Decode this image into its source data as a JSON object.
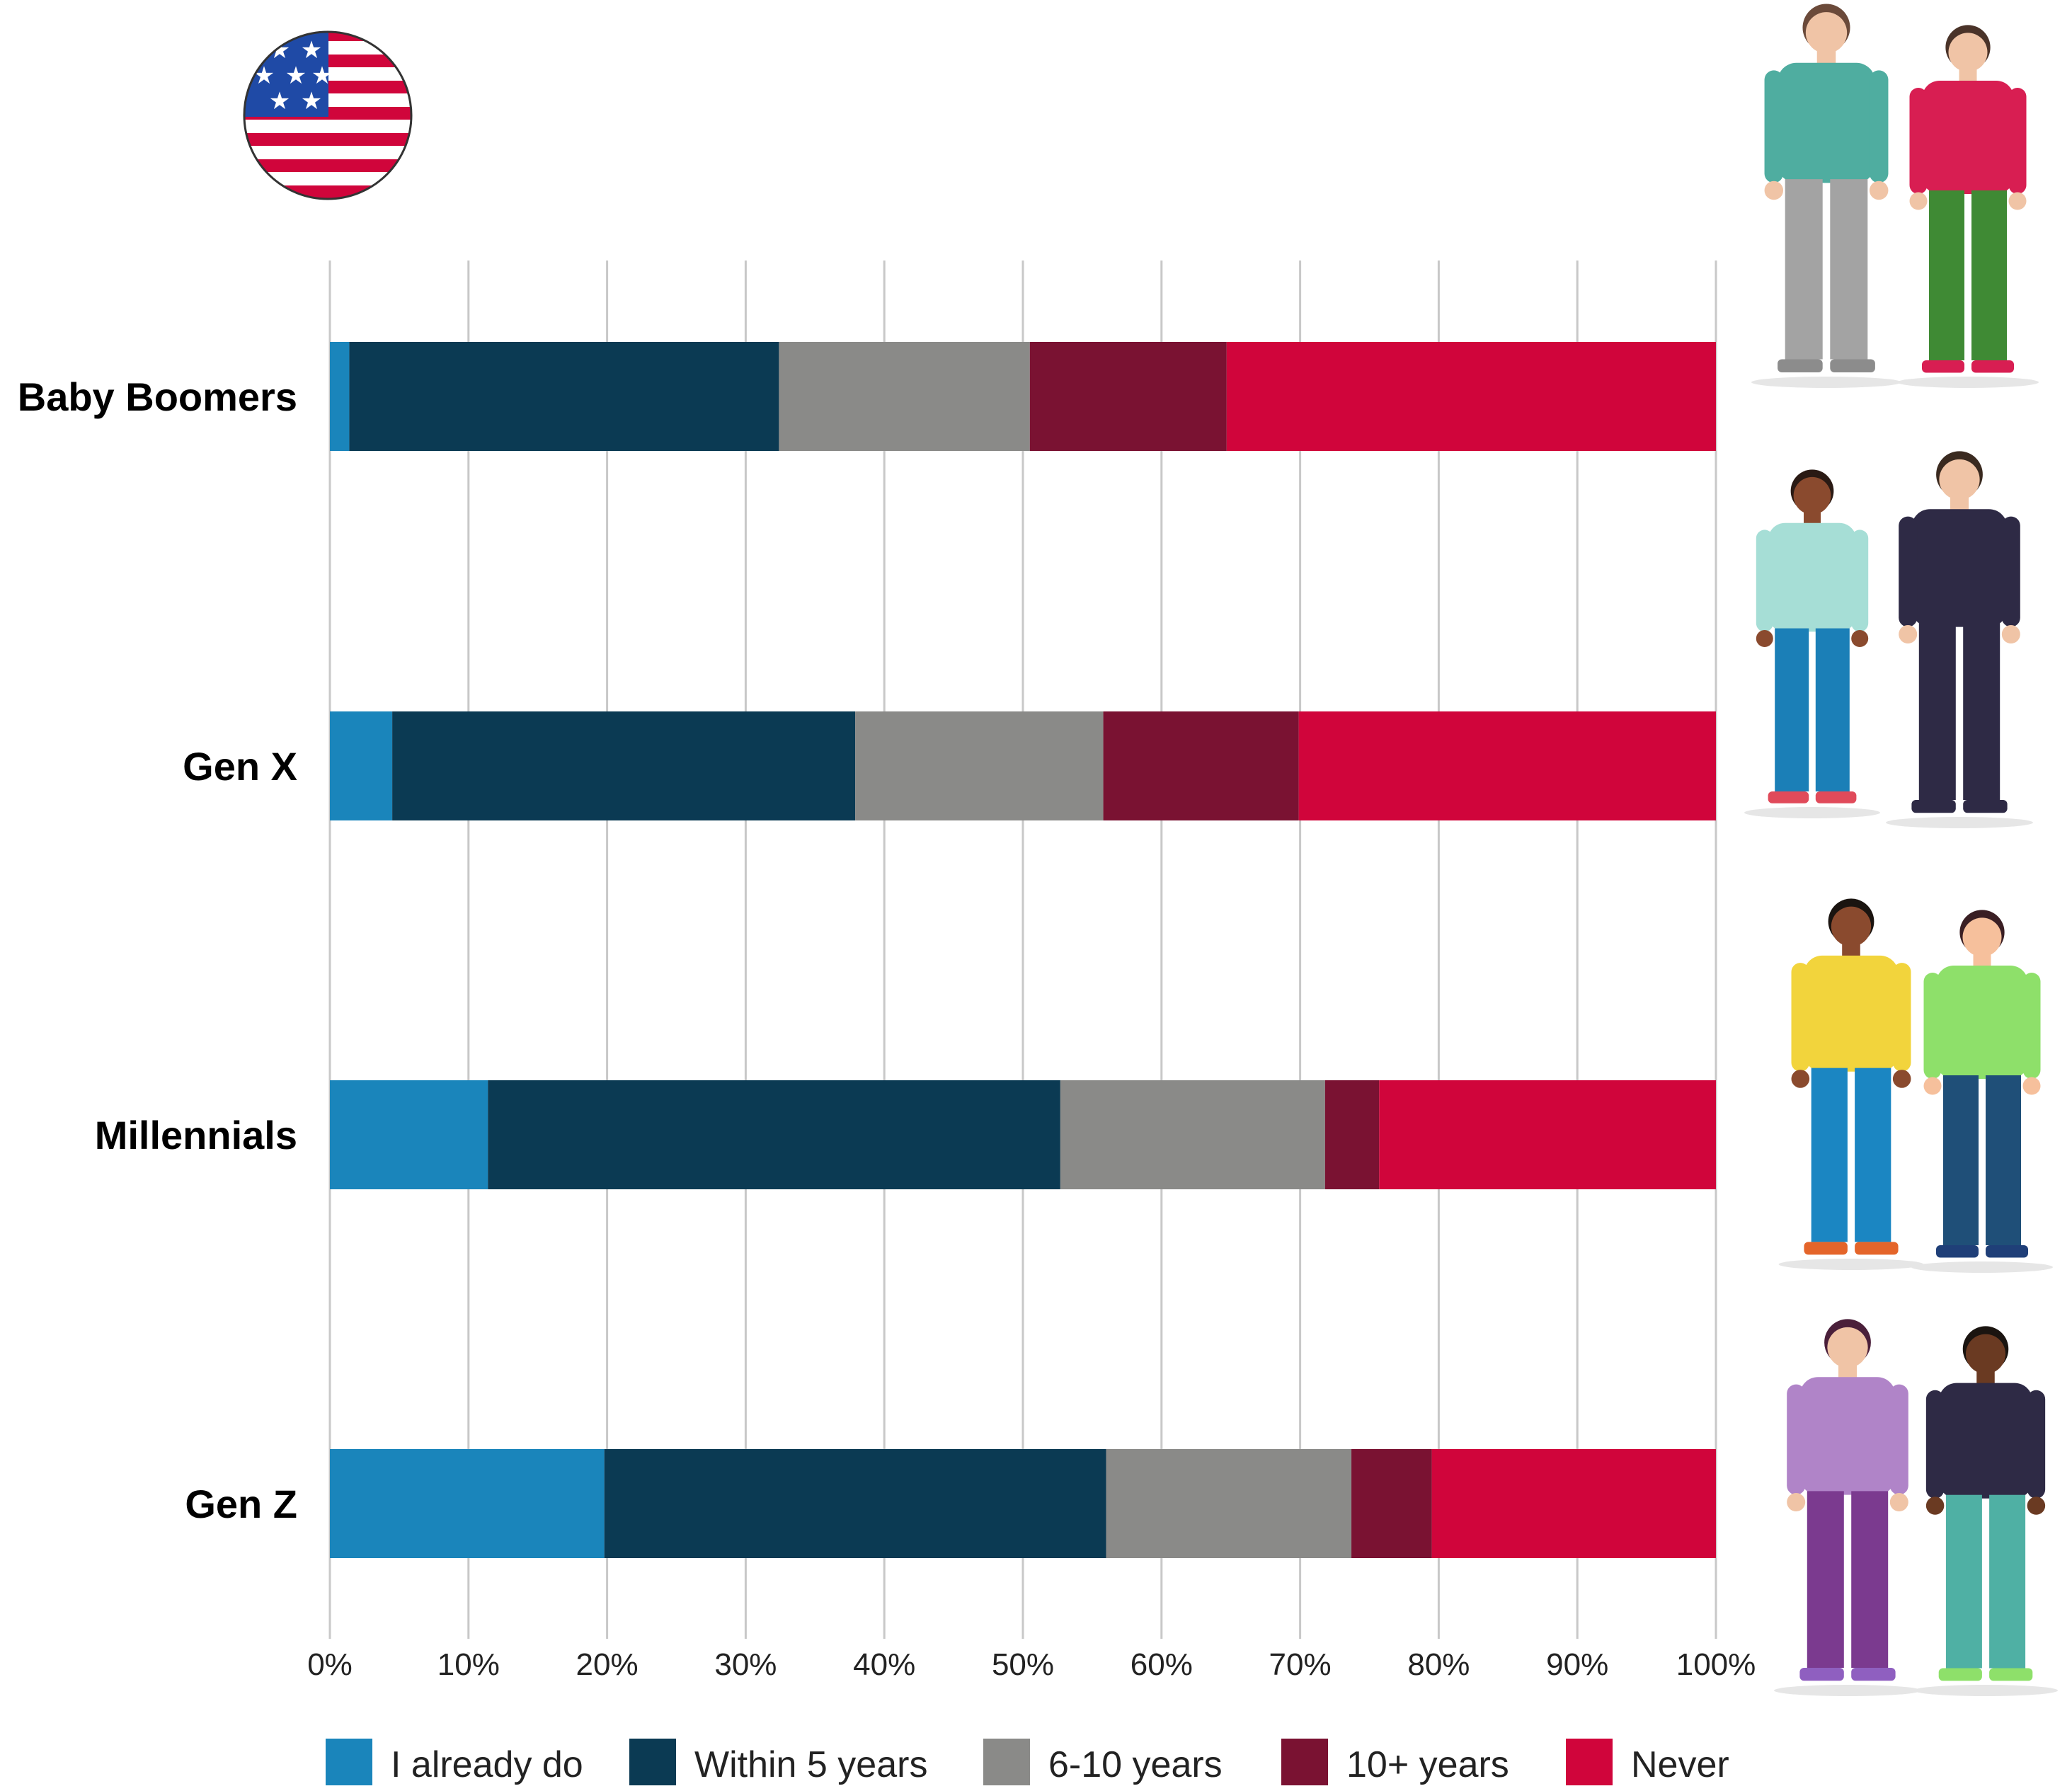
{
  "chart_data": {
    "type": "bar",
    "orientation": "horizontal",
    "stacked": true,
    "categories": [
      "Baby Boomers",
      "Gen X",
      "Millennials",
      "Gen Z"
    ],
    "series": [
      {
        "name": "I already do",
        "color": "#1a85bb",
        "values": [
          1.4,
          4.5,
          11.4,
          19.8
        ]
      },
      {
        "name": "Within 5 years",
        "color": "#0b3a53",
        "values": [
          31.0,
          33.4,
          41.3,
          36.2
        ]
      },
      {
        "name": "6-10 years",
        "color": "#8a8a88",
        "values": [
          18.1,
          17.9,
          19.1,
          17.7
        ]
      },
      {
        "name": "10+ years",
        "color": "#7a1232",
        "values": [
          14.2,
          14.1,
          3.9,
          5.8
        ]
      },
      {
        "name": "Never",
        "color": "#d0053b",
        "values": [
          35.3,
          30.1,
          24.3,
          20.5
        ]
      }
    ],
    "x_ticks": [
      "0%",
      "10%",
      "20%",
      "30%",
      "40%",
      "50%",
      "60%",
      "70%",
      "80%",
      "90%",
      "100%"
    ],
    "xlim": [
      0,
      100
    ],
    "grid": true,
    "legend_position": "bottom",
    "title": "",
    "xlabel": "",
    "ylabel": ""
  },
  "decorations": {
    "flag": "us-flag-icon",
    "illustrations": [
      "baby-boomers-people",
      "gen-x-people",
      "millennials-people",
      "gen-z-people"
    ]
  }
}
